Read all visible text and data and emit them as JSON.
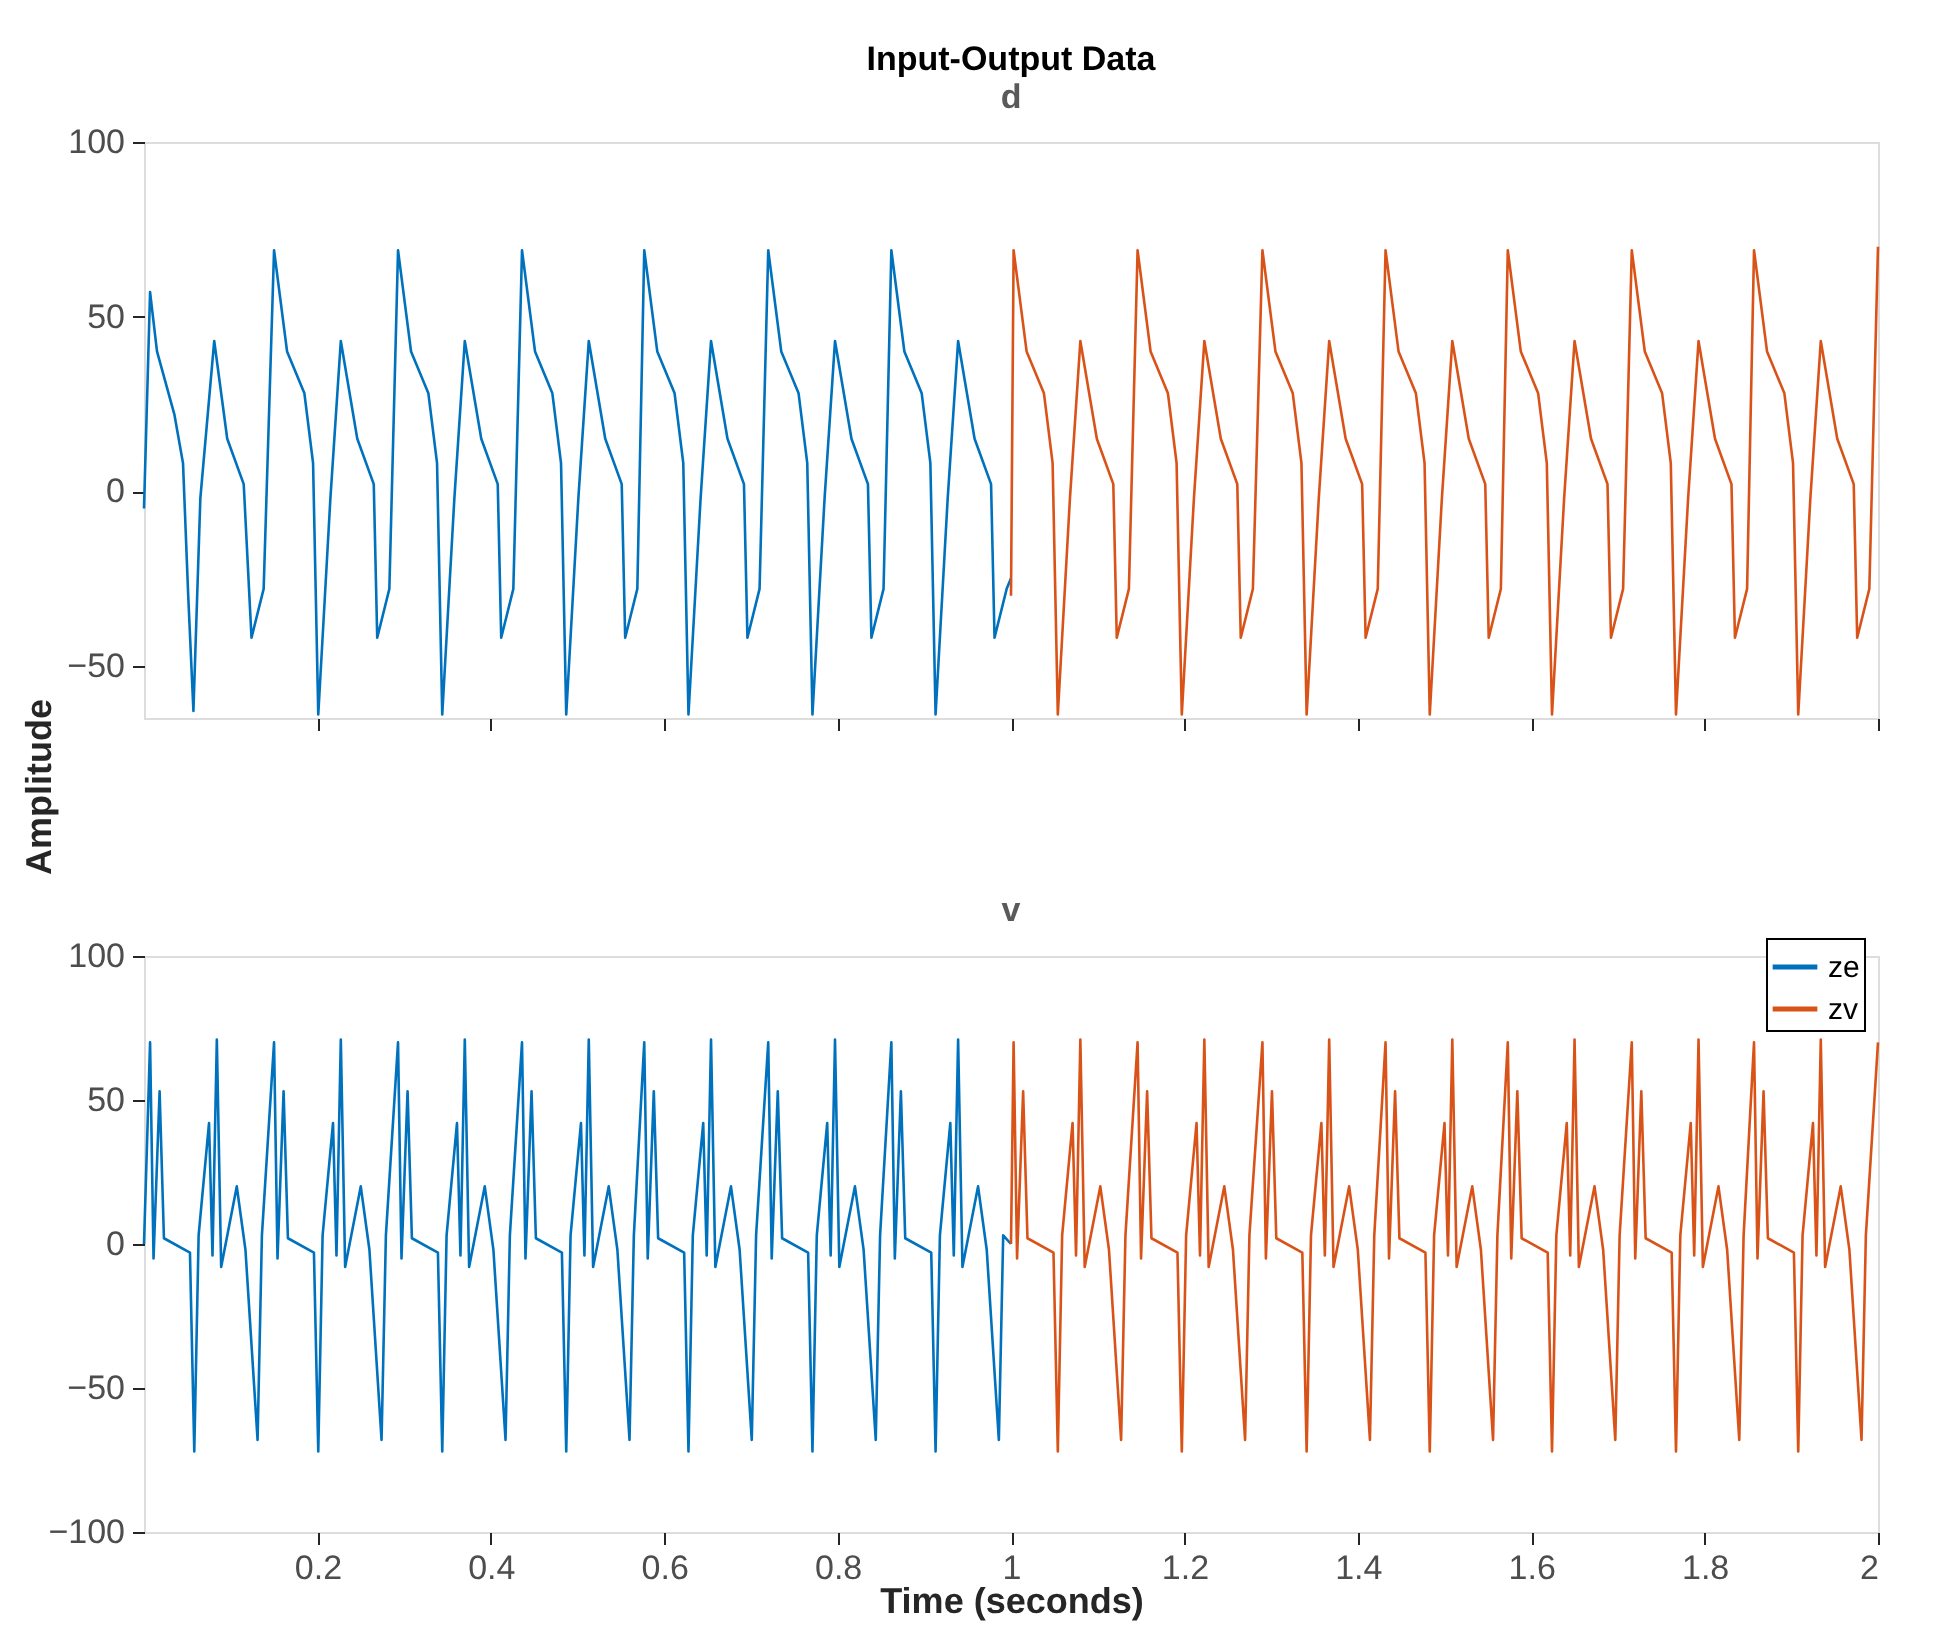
{
  "chart_data": [
    {
      "type": "line",
      "title": "Input-Output Data",
      "subtitle": "d",
      "ylabel": "Amplitude",
      "xlim": [
        0,
        2
      ],
      "xticks": [
        0.2,
        0.4,
        0.6,
        0.8,
        1,
        1.2,
        1.4,
        1.6,
        1.8,
        2
      ],
      "ylim": [
        -65,
        100
      ],
      "yticks": [
        -50,
        0,
        50,
        100
      ],
      "tick_labels": "y",
      "grid": false,
      "line_style": "solid",
      "marker": "none",
      "series": [
        {
          "color": "#0072bd",
          "x": [
            0,
            0.007,
            0.015,
            0.035,
            0.045,
            0.051,
            0.057,
            0.065,
            0.081,
            0.096,
            0.115,
            0.124,
            0.138,
            0.15,
            0.165,
            0.185,
            0.195,
            0.201,
            0.215,
            0.227,
            0.246,
            0.265,
            0.269,
            0.283,
            0.293,
            0.308,
            0.328,
            0.338,
            0.344,
            0.358,
            0.37,
            0.389,
            0.408,
            0.412,
            0.426,
            0.436,
            0.451,
            0.471,
            0.481,
            0.487,
            0.501,
            0.513,
            0.532,
            0.551,
            0.555,
            0.569,
            0.577,
            0.592,
            0.612,
            0.622,
            0.628,
            0.642,
            0.654,
            0.673,
            0.692,
            0.696,
            0.71,
            0.72,
            0.735,
            0.755,
            0.765,
            0.771,
            0.785,
            0.797,
            0.816,
            0.835,
            0.839,
            0.853,
            0.862,
            0.877,
            0.897,
            0.907,
            0.913,
            0.927,
            0.939,
            0.958,
            0.977,
            0.981,
            0.995,
            1.0
          ],
          "values": [
            -5,
            57,
            40,
            22,
            8,
            -30,
            -63,
            -2,
            43,
            15,
            2,
            -42,
            -28,
            69,
            40,
            28,
            8,
            -64,
            -2,
            43,
            15,
            2,
            -42,
            -28,
            69,
            40,
            28,
            8,
            -64,
            -2,
            43,
            15,
            2,
            -42,
            -28,
            69,
            40,
            28,
            8,
            -64,
            -2,
            43,
            15,
            2,
            -42,
            -28,
            69,
            40,
            28,
            8,
            -64,
            -2,
            43,
            15,
            2,
            -42,
            -28,
            69,
            40,
            28,
            8,
            -64,
            -2,
            43,
            15,
            2,
            -42,
            -28,
            69,
            40,
            28,
            8,
            -64,
            -2,
            43,
            15,
            2,
            -42,
            -28,
            -25
          ]
        },
        {
          "color": "#d95319",
          "x": [
            1.0,
            1.003,
            1.018,
            1.038,
            1.048,
            1.054,
            1.068,
            1.08,
            1.099,
            1.118,
            1.122,
            1.136,
            1.146,
            1.161,
            1.181,
            1.191,
            1.197,
            1.211,
            1.223,
            1.242,
            1.261,
            1.265,
            1.279,
            1.29,
            1.305,
            1.325,
            1.335,
            1.341,
            1.355,
            1.367,
            1.386,
            1.405,
            1.409,
            1.423,
            1.432,
            1.447,
            1.467,
            1.477,
            1.483,
            1.497,
            1.509,
            1.528,
            1.547,
            1.551,
            1.565,
            1.573,
            1.588,
            1.608,
            1.618,
            1.624,
            1.638,
            1.65,
            1.669,
            1.688,
            1.692,
            1.706,
            1.716,
            1.731,
            1.751,
            1.761,
            1.767,
            1.781,
            1.793,
            1.812,
            1.831,
            1.835,
            1.849,
            1.857,
            1.872,
            1.892,
            1.902,
            1.908,
            1.922,
            1.934,
            1.953,
            1.972,
            1.976,
            1.99,
            2.0
          ],
          "values": [
            -30,
            69,
            40,
            28,
            8,
            -64,
            -2,
            43,
            15,
            2,
            -42,
            -28,
            69,
            40,
            28,
            8,
            -64,
            -2,
            43,
            15,
            2,
            -42,
            -28,
            69,
            40,
            28,
            8,
            -64,
            -2,
            43,
            15,
            2,
            -42,
            -28,
            69,
            40,
            28,
            8,
            -64,
            -2,
            43,
            15,
            2,
            -42,
            -28,
            69,
            40,
            28,
            8,
            -64,
            -2,
            43,
            15,
            2,
            -42,
            -28,
            69,
            40,
            28,
            8,
            -64,
            -2,
            43,
            15,
            2,
            -42,
            -28,
            69,
            40,
            28,
            8,
            -64,
            -2,
            43,
            15,
            2,
            -42,
            -28,
            70
          ]
        }
      ]
    },
    {
      "type": "line",
      "title": "v",
      "xlabel": "Time (seconds)",
      "xlim": [
        0,
        2
      ],
      "xticks": [
        0.2,
        0.4,
        0.6,
        0.8,
        1,
        1.2,
        1.4,
        1.6,
        1.8,
        2
      ],
      "ylim": [
        -100,
        100
      ],
      "yticks": [
        -100,
        -50,
        0,
        50,
        100
      ],
      "grid": false,
      "line_style": "solid",
      "marker": "none",
      "legend": "top right",
      "series": [
        {
          "name": "ze",
          "color": "#0072bd",
          "x": [
            0,
            0.007,
            0.011,
            0.018,
            0.023,
            0.053,
            0.058,
            0.063,
            0.075,
            0.079,
            0.084,
            0.089,
            0.107,
            0.117,
            0.131,
            0.136,
            0.15,
            0.154,
            0.161,
            0.166,
            0.196,
            0.201,
            0.206,
            0.218,
            0.222,
            0.227,
            0.232,
            0.25,
            0.26,
            0.274,
            0.279,
            0.293,
            0.297,
            0.304,
            0.309,
            0.339,
            0.344,
            0.349,
            0.361,
            0.365,
            0.37,
            0.375,
            0.393,
            0.403,
            0.417,
            0.422,
            0.436,
            0.44,
            0.447,
            0.452,
            0.482,
            0.487,
            0.492,
            0.504,
            0.508,
            0.513,
            0.518,
            0.536,
            0.546,
            0.56,
            0.565,
            0.577,
            0.581,
            0.588,
            0.593,
            0.623,
            0.628,
            0.633,
            0.645,
            0.649,
            0.654,
            0.659,
            0.677,
            0.687,
            0.701,
            0.706,
            0.72,
            0.724,
            0.731,
            0.736,
            0.766,
            0.771,
            0.776,
            0.788,
            0.792,
            0.797,
            0.802,
            0.82,
            0.83,
            0.844,
            0.849,
            0.862,
            0.866,
            0.873,
            0.878,
            0.908,
            0.913,
            0.918,
            0.93,
            0.934,
            0.939,
            0.944,
            0.962,
            0.972,
            0.986,
            0.991,
            1.0
          ],
          "values": [
            0,
            70,
            -5,
            53,
            2,
            -3,
            -72,
            3,
            42,
            -4,
            71,
            -8,
            20,
            -2,
            -68,
            3,
            70,
            -5,
            53,
            2,
            -3,
            -72,
            3,
            42,
            -4,
            71,
            -8,
            20,
            -2,
            -68,
            3,
            70,
            -5,
            53,
            2,
            -3,
            -72,
            3,
            42,
            -4,
            71,
            -8,
            20,
            -2,
            -68,
            3,
            70,
            -5,
            53,
            2,
            -3,
            -72,
            3,
            42,
            -4,
            71,
            -8,
            20,
            -2,
            -68,
            3,
            70,
            -5,
            53,
            2,
            -3,
            -72,
            3,
            42,
            -4,
            71,
            -8,
            20,
            -2,
            -68,
            3,
            70,
            -5,
            53,
            2,
            -3,
            -72,
            3,
            42,
            -4,
            71,
            -8,
            20,
            -2,
            -68,
            3,
            70,
            -5,
            53,
            2,
            -3,
            -72,
            3,
            42,
            -4,
            71,
            -8,
            20,
            -2,
            -68,
            3,
            0
          ]
        },
        {
          "name": "zv",
          "color": "#d95319",
          "x": [
            1.0,
            1.003,
            1.007,
            1.014,
            1.019,
            1.049,
            1.054,
            1.059,
            1.071,
            1.075,
            1.08,
            1.085,
            1.103,
            1.113,
            1.127,
            1.132,
            1.146,
            1.15,
            1.157,
            1.162,
            1.192,
            1.197,
            1.202,
            1.214,
            1.218,
            1.223,
            1.228,
            1.246,
            1.256,
            1.27,
            1.275,
            1.29,
            1.294,
            1.301,
            1.306,
            1.336,
            1.341,
            1.346,
            1.358,
            1.362,
            1.367,
            1.372,
            1.39,
            1.4,
            1.414,
            1.419,
            1.432,
            1.436,
            1.443,
            1.448,
            1.478,
            1.483,
            1.488,
            1.5,
            1.504,
            1.509,
            1.514,
            1.532,
            1.542,
            1.556,
            1.561,
            1.573,
            1.577,
            1.584,
            1.589,
            1.619,
            1.624,
            1.629,
            1.641,
            1.645,
            1.65,
            1.655,
            1.673,
            1.683,
            1.697,
            1.702,
            1.716,
            1.72,
            1.727,
            1.732,
            1.762,
            1.767,
            1.772,
            1.784,
            1.788,
            1.793,
            1.798,
            1.816,
            1.826,
            1.84,
            1.845,
            1.857,
            1.861,
            1.868,
            1.873,
            1.903,
            1.908,
            1.913,
            1.925,
            1.929,
            1.934,
            1.939,
            1.957,
            1.967,
            1.981,
            1.986,
            2.0
          ],
          "values": [
            0,
            70,
            -5,
            53,
            2,
            -3,
            -72,
            3,
            42,
            -4,
            71,
            -8,
            20,
            -2,
            -68,
            3,
            70,
            -5,
            53,
            2,
            -3,
            -72,
            3,
            42,
            -4,
            71,
            -8,
            20,
            -2,
            -68,
            3,
            70,
            -5,
            53,
            2,
            -3,
            -72,
            3,
            42,
            -4,
            71,
            -8,
            20,
            -2,
            -68,
            3,
            70,
            -5,
            53,
            2,
            -3,
            -72,
            3,
            42,
            -4,
            71,
            -8,
            20,
            -2,
            -68,
            3,
            70,
            -5,
            53,
            2,
            -3,
            -72,
            3,
            42,
            -4,
            71,
            -8,
            20,
            -2,
            -68,
            3,
            70,
            -5,
            53,
            2,
            -3,
            -72,
            3,
            42,
            -4,
            71,
            -8,
            20,
            -2,
            -68,
            3,
            70,
            -5,
            53,
            2,
            -3,
            -72,
            3,
            42,
            -4,
            71,
            -8,
            20,
            -2,
            -68,
            3,
            70
          ]
        }
      ]
    }
  ]
}
